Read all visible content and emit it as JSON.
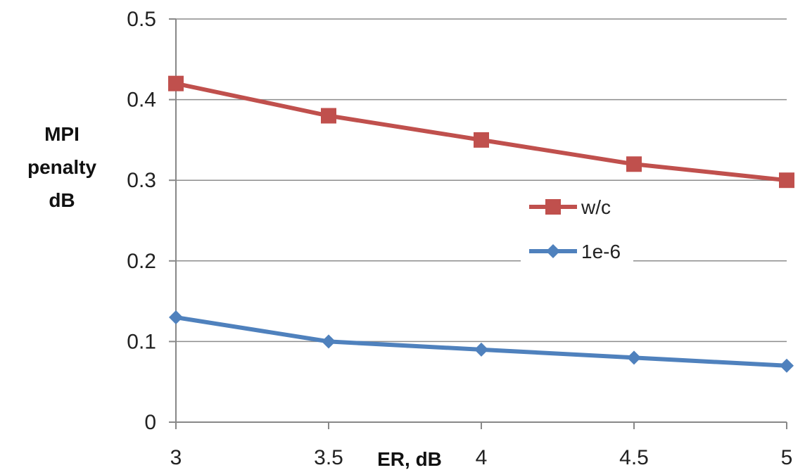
{
  "chart_data": {
    "type": "line",
    "x": [
      3,
      3.5,
      4,
      4.5,
      5
    ],
    "x_tick_labels": [
      "3",
      "3.5",
      "4",
      "4.5",
      "5"
    ],
    "y_tick_labels": [
      "0",
      "0.1",
      "0.2",
      "0.3",
      "0.4",
      "0.5"
    ],
    "xlabel": "ER, dB",
    "ylabel_lines": [
      "MPI",
      "penalty",
      "dB"
    ],
    "xlim": [
      3,
      5
    ],
    "ylim": [
      0,
      0.5
    ],
    "grid": "horizontal",
    "legend_position": "right-middle",
    "series": [
      {
        "name": "w/c",
        "values": [
          0.42,
          0.38,
          0.35,
          0.32,
          0.3
        ],
        "color": "#c0504d",
        "marker": "square"
      },
      {
        "name": "1e-6",
        "values": [
          0.13,
          0.1,
          0.09,
          0.08,
          0.07
        ],
        "color": "#4f81bd",
        "marker": "diamond"
      }
    ]
  }
}
